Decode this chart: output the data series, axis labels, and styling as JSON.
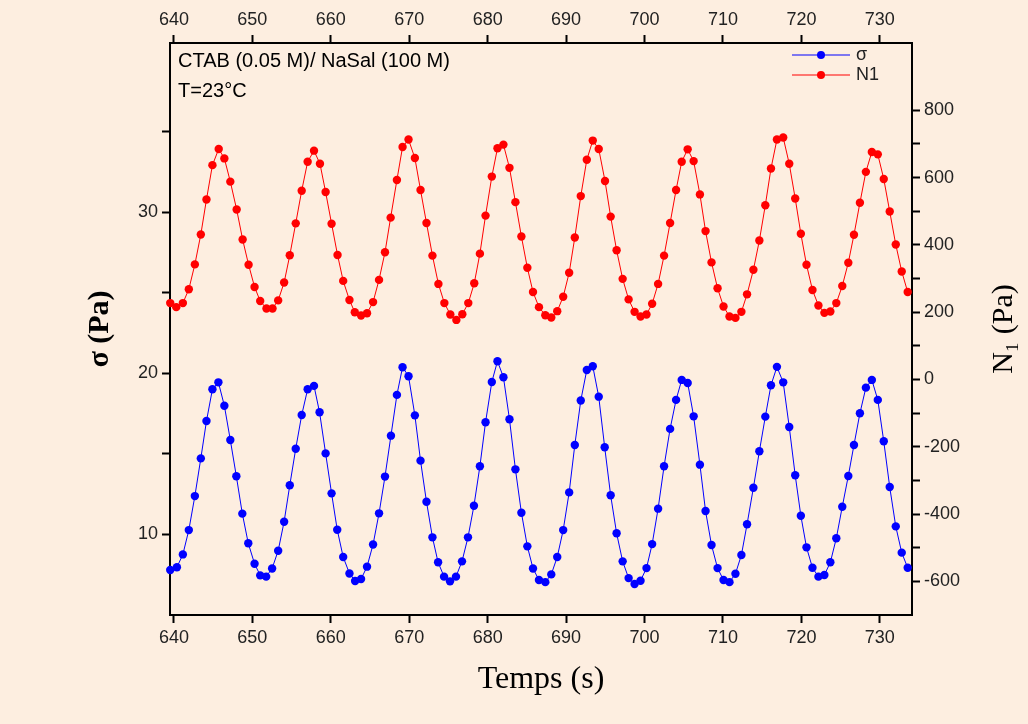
{
  "chart_data": {
    "type": "line",
    "xlabel": "Temps (s)",
    "ylabel": "σ (Pa)",
    "y2label": "N₁ (Pa)",
    "annotations": [
      "CTAB (0.05 M)/ NaSal (100 M)",
      "T=23°C"
    ],
    "xlim": [
      639.5,
      734.1
    ],
    "xticks": [
      640,
      650,
      660,
      670,
      680,
      690,
      700,
      710,
      720,
      730
    ],
    "x2lim": [
      639.5,
      734.1
    ],
    "x2ticks": [
      640,
      650,
      660,
      670,
      680,
      690,
      700,
      710,
      720,
      730
    ],
    "ylim": [
      5,
      40.5
    ],
    "yticks": [
      10,
      {
        "value": 15,
        "label": null
      },
      20,
      {
        "value": 25,
        "label": null
      },
      30,
      {
        "value": 35,
        "label": null
      }
    ],
    "y2lim": [
      -700,
      1000
    ],
    "y2ticks": [
      -600,
      {
        "value": -500,
        "label": null
      },
      -400,
      {
        "value": -300,
        "label": null
      },
      -200,
      {
        "value": -100,
        "label": null
      },
      0,
      {
        "value": 100,
        "label": null
      },
      200,
      {
        "value": 300,
        "label": null
      },
      400,
      {
        "value": 500,
        "label": null
      },
      600,
      {
        "value": 700,
        "label": null
      },
      800
    ],
    "legend": "top right",
    "marker": "circle",
    "grid": false,
    "series": [
      {
        "name": "σ",
        "color": "#0000ff",
        "x": [
          639.53,
          640.38,
          641.14,
          641.9,
          642.67,
          643.43,
          644.15,
          644.91,
          645.67,
          646.43,
          647.19,
          647.96,
          648.72,
          649.48,
          650.28,
          651.0,
          651.76,
          652.52,
          653.29,
          654.05,
          654.77,
          655.53,
          656.29,
          657.05,
          657.86,
          658.57,
          659.34,
          660.1,
          660.82,
          661.58,
          662.38,
          663.1,
          663.86,
          664.62,
          665.39,
          666.15,
          666.91,
          667.67,
          668.43,
          669.15,
          669.91,
          670.72,
          671.44,
          672.2,
          672.96,
          673.68,
          674.44,
          675.2,
          675.96,
          676.73,
          677.49,
          678.25,
          679.01,
          679.73,
          680.53,
          681.25,
          682.01,
          682.78,
          683.54,
          684.3,
          685.06,
          685.78,
          686.54,
          687.35,
          688.11,
          688.87,
          689.63,
          690.39,
          691.11,
          691.87,
          692.64,
          693.4,
          694.16,
          694.92,
          695.68,
          696.44,
          697.21,
          697.97,
          698.73,
          699.49,
          700.25,
          700.97,
          701.73,
          702.49,
          703.26,
          704.02,
          704.74,
          705.5,
          706.26,
          707.06,
          707.78,
          708.54,
          709.31,
          710.07,
          710.83,
          711.59,
          712.35,
          713.07,
          713.88,
          714.64,
          715.4,
          716.12,
          716.88,
          717.68,
          718.45,
          719.21,
          719.93,
          720.65,
          721.41,
          722.17,
          722.93,
          723.69,
          724.45,
          725.21,
          725.98,
          726.7,
          727.46,
          728.22,
          728.98,
          729.74,
          730.5,
          731.26,
          732.03,
          732.79,
          733.55
        ],
        "values": [
          7.79,
          7.96,
          8.76,
          10.27,
          12.38,
          14.72,
          17.04,
          19.01,
          19.44,
          17.99,
          15.86,
          13.61,
          11.29,
          9.45,
          8.18,
          7.46,
          7.38,
          7.89,
          8.99,
          10.79,
          13.05,
          15.32,
          17.41,
          19.01,
          19.22,
          17.58,
          15.03,
          12.55,
          10.29,
          8.6,
          7.58,
          7.11,
          7.23,
          8.0,
          9.38,
          11.31,
          13.59,
          16.13,
          18.66,
          20.38,
          19.82,
          17.39,
          14.58,
          12.03,
          9.82,
          8.27,
          7.38,
          7.09,
          7.38,
          8.33,
          9.82,
          11.78,
          14.23,
          16.96,
          19.46,
          20.75,
          19.76,
          17.15,
          14.04,
          11.35,
          9.26,
          7.89,
          7.17,
          7.04,
          7.52,
          8.6,
          10.27,
          12.61,
          15.55,
          18.31,
          20.21,
          20.44,
          18.55,
          15.41,
          12.43,
          10.07,
          8.33,
          7.29,
          6.92,
          7.13,
          7.91,
          9.4,
          11.6,
          14.23,
          16.55,
          18.35,
          19.59,
          19.4,
          17.33,
          14.33,
          11.45,
          9.34,
          7.91,
          7.17,
          7.04,
          7.56,
          8.72,
          10.63,
          12.9,
          15.16,
          17.31,
          19.26,
          20.4,
          19.44,
          16.67,
          13.67,
          11.16,
          9.2,
          7.93,
          7.38,
          7.48,
          8.27,
          9.76,
          11.72,
          13.63,
          15.55,
          17.52,
          19.11,
          19.59,
          18.35,
          15.78,
          12.94,
          10.5,
          8.87,
          7.93
        ]
      },
      {
        "name": "N1",
        "color": "#ff0000",
        "axis": "y2",
        "x": [
          639.53,
          640.3,
          641.14,
          641.9,
          642.67,
          643.43,
          644.15,
          644.91,
          645.71,
          646.43,
          647.19,
          648.0,
          648.76,
          649.52,
          650.28,
          651.0,
          651.8,
          652.57,
          653.29,
          654.05,
          654.77,
          655.53,
          656.29,
          657.05,
          657.86,
          658.62,
          659.34,
          660.1,
          660.86,
          661.58,
          662.38,
          663.06,
          663.86,
          664.62,
          665.39,
          666.15,
          666.91,
          667.63,
          668.43,
          669.15,
          669.91,
          670.72,
          671.44,
          672.2,
          672.96,
          673.72,
          674.48,
          675.24,
          676.01,
          676.77,
          677.53,
          678.29,
          679.01,
          679.73,
          680.53,
          681.25,
          682.01,
          682.78,
          683.54,
          684.3,
          685.06,
          685.78,
          686.54,
          687.35,
          688.11,
          688.87,
          689.63,
          690.39,
          691.11,
          691.87,
          692.64,
          693.4,
          694.16,
          694.96,
          695.68,
          696.44,
          697.21,
          697.97,
          698.73,
          699.49,
          700.25,
          700.97,
          701.73,
          702.49,
          703.26,
          704.02,
          704.74,
          705.5,
          706.26,
          707.06,
          707.78,
          708.54,
          709.31,
          710.07,
          710.83,
          711.59,
          712.35,
          713.07,
          713.88,
          714.64,
          715.4,
          716.12,
          716.88,
          717.68,
          718.45,
          719.21,
          719.93,
          720.65,
          721.41,
          722.17,
          722.93,
          723.69,
          724.45,
          725.21,
          725.98,
          726.7,
          727.46,
          728.22,
          728.98,
          729.74,
          730.5,
          731.26,
          732.03,
          732.79,
          733.55
        ],
        "values": [
          227,
          215,
          227,
          268,
          342,
          431,
          535,
          637,
          685,
          657,
          588,
          505,
          416,
          341,
          275,
          233,
          211,
          211,
          235,
          288,
          369,
          464,
          561,
          647,
          680,
          641,
          557,
          463,
          370,
          293,
          236,
          200,
          190,
          197,
          230,
          296,
          378,
          481,
          593,
          691,
          713,
          658,
          563,
          465,
          368,
          284,
          227,
          193,
          177,
          194,
          227,
          286,
          374,
          487,
          603,
          687,
          698,
          629,
          527,
          425,
          332,
          260,
          215,
          191,
          184,
          203,
          246,
          317,
          422,
          545,
          653,
          710,
          685,
          590,
          484,
          384,
          299,
          238,
          201,
          187,
          193,
          225,
          284,
          368,
          465,
          563,
          647,
          684,
          649,
          550,
          441,
          348,
          271,
          217,
          187,
          183,
          201,
          253,
          326,
          413,
          518,
          627,
          713,
          719,
          641,
          538,
          433,
          341,
          266,
          220,
          198,
          202,
          227,
          278,
          347,
          430,
          525,
          617,
          676,
          669,
          596,
          499,
          401,
          321,
          260
        ]
      }
    ]
  }
}
